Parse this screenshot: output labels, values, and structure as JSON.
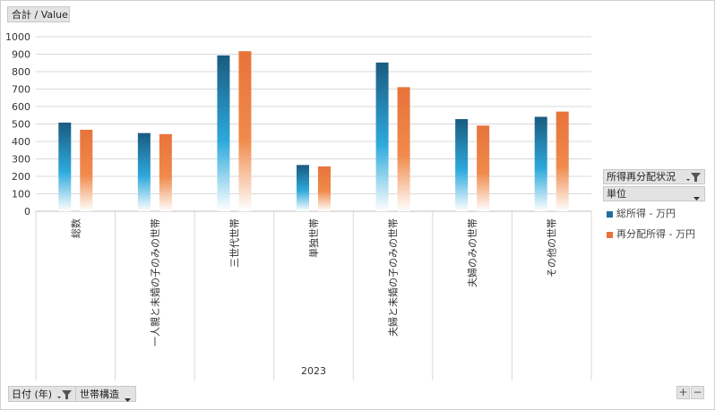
{
  "value_field_label": "合計 / Value",
  "legend": {
    "header": "所得再分配状況",
    "unit_field": "単位",
    "entries": [
      {
        "label": "総所得 - 万円",
        "color": "#1f6f99"
      },
      {
        "label": "再分配所得 - 万円",
        "color": "#e8733a"
      }
    ]
  },
  "bottom_fields": {
    "year_field": "日付 (年)",
    "structure_field": "世帯構造"
  },
  "zoom": {
    "plus": "+",
    "minus": "−"
  },
  "colors": {
    "series1_top": "#1a5b80",
    "series1_mid": "#2da9dc",
    "series2_top": "#e8733a",
    "series2_mid": "#f08a4b",
    "grid": "#d9d9d9"
  },
  "chart_data": {
    "type": "bar",
    "group_label": "2023",
    "categories": [
      "総数",
      "一人親と未婚の子のみの世帯",
      "三世代世帯",
      "単独世帯",
      "夫婦と未婚の子のみの世帯",
      "夫婦のみの世帯",
      "その他の世帯"
    ],
    "series": [
      {
        "name": "総所得 - 万円",
        "values": [
          508,
          448,
          893,
          265,
          852,
          528,
          541
        ]
      },
      {
        "name": "再分配所得 - 万円",
        "values": [
          467,
          442,
          917,
          257,
          711,
          491,
          571
        ]
      }
    ],
    "yticks": [
      "0",
      "100",
      "200",
      "300",
      "400",
      "500",
      "600",
      "700",
      "800",
      "900",
      "1000"
    ],
    "ylim": [
      0,
      1000
    ],
    "grid": true,
    "legend_position": "right"
  }
}
